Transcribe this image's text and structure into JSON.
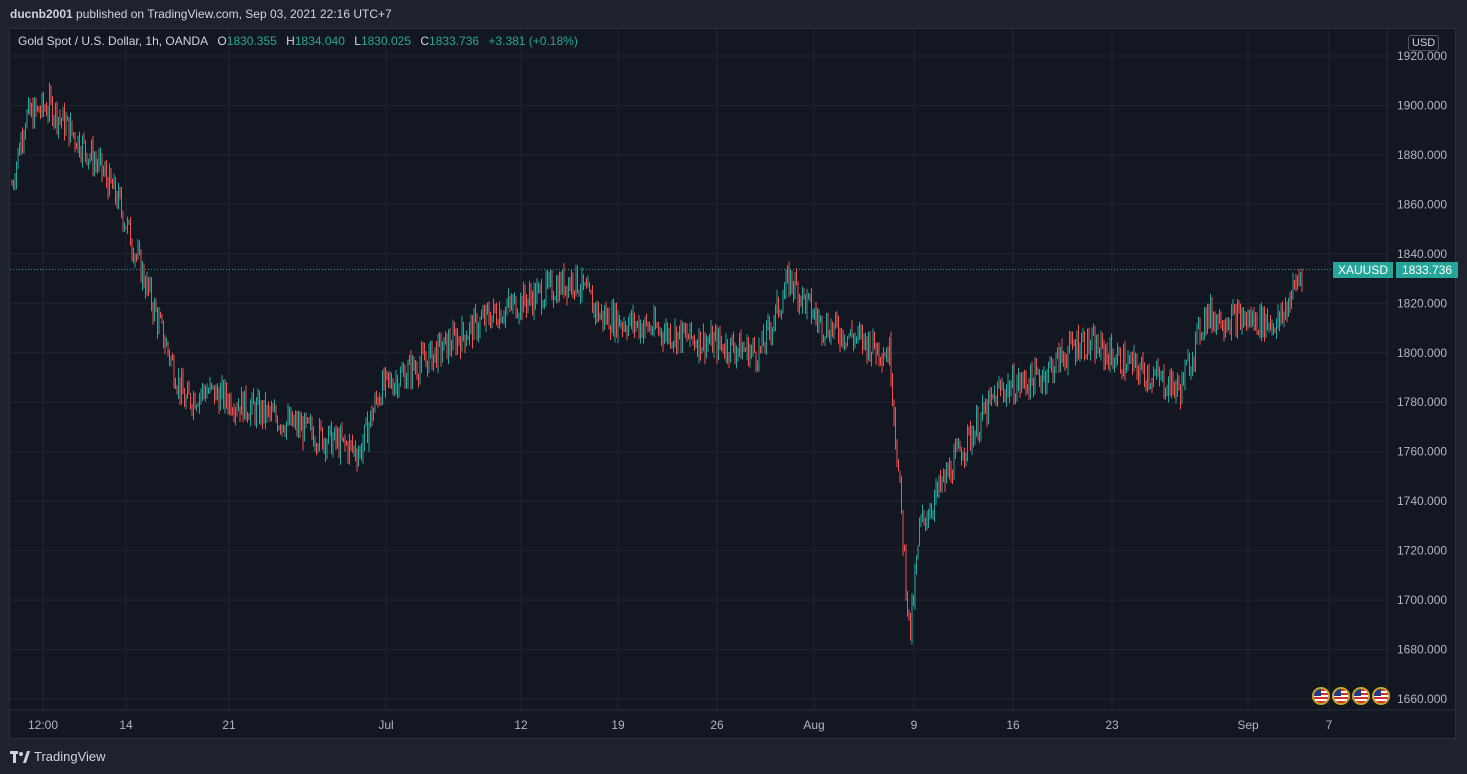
{
  "header": {
    "author": "ducnb2001",
    "published_text": "published on TradingView.com, Sep 03, 2021 22:16 UTC+7"
  },
  "legend": {
    "symbol_name": "Gold Spot / U.S. Dollar, 1h, OANDA",
    "o_label": "O",
    "o_value": "1830.355",
    "h_label": "H",
    "h_value": "1834.040",
    "l_label": "L",
    "l_value": "1830.025",
    "c_label": "C",
    "c_value": "1833.736",
    "change": "+3.381 (+0.18%)"
  },
  "currency_badge": "USD",
  "last_price": {
    "symbol": "XAUUSD",
    "value": "1833.736",
    "color": "#26a69a"
  },
  "colors": {
    "up": "#26a69a",
    "down": "#ef5350",
    "background": "#131722",
    "grid": "#1f2430"
  },
  "footer": {
    "brand": "TradingView",
    "logo_icon": "tradingview-logo-icon"
  },
  "chart_data": {
    "type": "candlestick",
    "interval": "1h",
    "x_ticks": [
      "12:00",
      "14",
      "21",
      "Jul",
      "12",
      "19",
      "26",
      "Aug",
      "9",
      "16",
      "23",
      "Sep",
      "7"
    ],
    "y_ticks": [
      "1920.000",
      "1900.000",
      "1880.000",
      "1860.000",
      "1840.000",
      "1820.000",
      "1800.000",
      "1780.000",
      "1760.000",
      "1740.000",
      "1720.000",
      "1700.000",
      "1680.000",
      "1660.000"
    ],
    "ylim": [
      1655,
      1925
    ],
    "price_path": [
      [
        "12:00",
        1868
      ],
      [
        "12:00",
        1895
      ],
      [
        "14",
        1900
      ],
      [
        "14",
        1875
      ],
      [
        "14",
        1862
      ],
      [
        "21",
        1780
      ],
      [
        "21",
        1785
      ],
      [
        "Jul",
        1760
      ],
      [
        "Jul",
        1785
      ],
      [
        "12",
        1805
      ],
      [
        "12",
        1815
      ],
      [
        "19",
        1830
      ],
      [
        "19",
        1815
      ],
      [
        "26",
        1805
      ],
      [
        "26",
        1800
      ],
      [
        "Aug",
        1830
      ],
      [
        "Aug",
        1812
      ],
      [
        "9",
        1800
      ],
      [
        "9",
        1685
      ],
      [
        "9",
        1730
      ],
      [
        "16",
        1760
      ],
      [
        "16",
        1785
      ],
      [
        "23",
        1790
      ],
      [
        "23",
        1805
      ],
      [
        "23",
        1795
      ],
      [
        "Sep",
        1785
      ],
      [
        "Sep",
        1815
      ],
      [
        "Sep",
        1812
      ],
      [
        "Sep",
        1833.736
      ]
    ]
  }
}
